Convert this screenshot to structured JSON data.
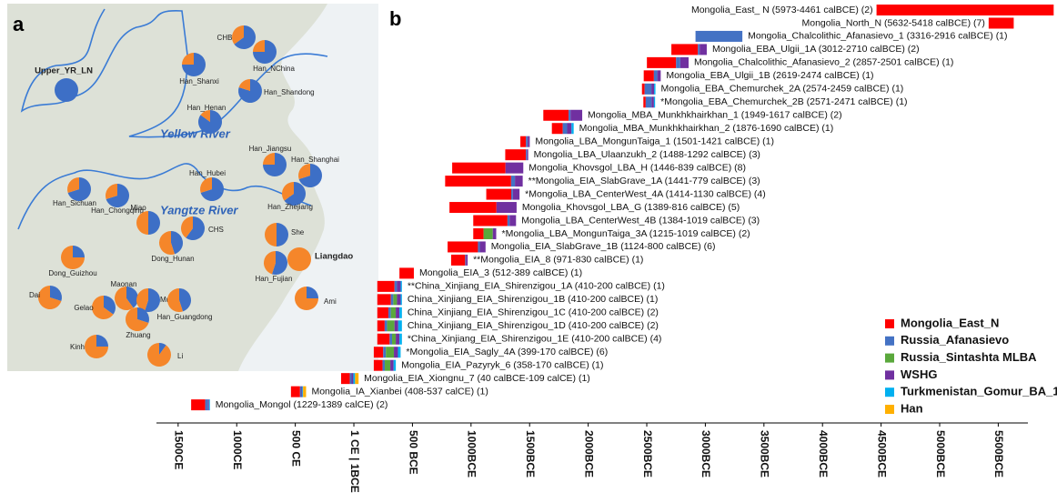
{
  "chart_data": [
    {
      "type": "pie",
      "title": "a",
      "annotations": [
        "Yellow River",
        "Yangtze River"
      ],
      "categories": [
        "Upper_YR_LN",
        "CHB",
        "Han_NChina",
        "Han_Shanxi",
        "Han_Shandong",
        "Han_Henan",
        "Han_Jiangsu",
        "Han_Shanghai",
        "Han_Hubei",
        "Han_Zhejiang",
        "Han_Sichuan",
        "Han_Chongqing",
        "Miao",
        "CHS",
        "Dong_Hunan",
        "She",
        "Liangdao",
        "Dong_Guizhou",
        "Han_Fujian",
        "Dai",
        "Maonan",
        "Mulam",
        "Gelao",
        "Zhuang",
        "Han_Guangdong",
        "Ami",
        "Kinh",
        "Li"
      ],
      "series": [
        {
          "color": "#3d6fc6",
          "values": [
            100,
            65,
            75,
            75,
            80,
            85,
            75,
            70,
            70,
            65,
            70,
            70,
            50,
            60,
            45,
            50,
            0,
            25,
            55,
            30,
            40,
            55,
            35,
            30,
            45,
            25,
            25,
            10
          ]
        },
        {
          "color": "#f5862a",
          "values": [
            0,
            35,
            25,
            25,
            20,
            15,
            25,
            30,
            30,
            35,
            30,
            30,
            50,
            40,
            55,
            50,
            100,
            75,
            45,
            70,
            60,
            45,
            65,
            70,
            55,
            75,
            75,
            90
          ]
        }
      ]
    },
    {
      "type": "bar",
      "title": "b",
      "orientation": "horizontal",
      "categories": [
        "Mongolia_East_ N (5973-4461 calBCE) (2)",
        "Mongolia_North_N (5632-5418 calBCE) (7)",
        "Mongolia_Chalcolithic_Afanasievo_1 (3316-2916 calBCE) (1)",
        "Mongolia_EBA_Ulgii_1A (3012-2710 calBCE) (2)",
        "Mongolia_Chalcolithic_Afanasievo_2 (2857-2501 calBCE) (1)",
        "Mongolia_EBA_Ulgii_1B (2619-2474 calBCE) (1)",
        "Mongolia_EBA_Chemurchek_2A (2574-2459 calBCE) (1)",
        "*Mongolia_EBA_Chemurchek_2B (2571-2471 calBCE) (1)",
        "Mongolia_MBA_Munkhkhairkhan_1 (1949-1617 calBCE) (2)",
        "Mongolia_MBA_Munkhkhairkhan_2 (1876-1690 calBCE) (1)",
        "Mongolia_LBA_MongunTaiga_1 (1501-1421 calBCE) (1)",
        "Mongolia_LBA_Ulaanzukh_2 (1488-1292 calBCE) (3)",
        "Mongolia_Khovsgol_LBA_H (1446-839 calBCE) (8)",
        "**Mongolia_EIA_SlabGrave_1A (1441-779 calBCE) (3)",
        "*Mongolia_LBA_CenterWest_4A (1414-1130 calBCE) (4)",
        "Mongolia_Khovsgol_LBA_G (1389-816 calBCE) (5)",
        "Mongolia_LBA_CenterWest_4B (1384-1019 calBCE) (3)",
        "*Mongolia_LBA_MongunTaiga_3A (1215-1019 calBCE) (2)",
        "Mongolia_EIA_SlabGrave_1B (1124-800 calBCE) (6)",
        "**Mongolia_EIA_8 (971-830 calBCE) (1)",
        "Mongolia_EIA_3 (512-389 calBCE) (1)",
        "**China_Xinjiang_EIA_Shirenzigou_1A (410-200 calBCE) (1)",
        "China_Xinjiang_EIA_Shirenzigou_1B (410-200 calBCE) (1)",
        "China_Xinjiang_EIA_Shirenzigou_1C (410-200 calBCE) (2)",
        "China_Xinjiang_EIA_Shirenzigou_1D (410-200 calBCE) (2)",
        "*China_Xinjiang_EIA_Shirenzigou_1E (410-200 calBCE) (4)",
        "*Mongolia_EIA_Sagly_4A (399-170 calBCE) (6)",
        "Mongolia_EIA_Pazyryk_6 (358-170 calBCE) (1)",
        "Mongolia_EIA_Xiongnu_7 (40 calBCE-109 calCE) (1)",
        "Mongolia_IA_Xianbei (408-537 calCE) (1)",
        "Mongolia_Mongol (1229-1389 calCE) (2)"
      ],
      "start": [
        5973,
        5632,
        3316,
        3012,
        2857,
        2619,
        2574,
        2571,
        1949,
        1876,
        1501,
        1488,
        1446,
        1441,
        1414,
        1389,
        1384,
        1215,
        1124,
        971,
        512,
        410,
        410,
        410,
        410,
        410,
        399,
        358,
        40,
        -408,
        -1229
      ],
      "end": [
        4461,
        5418,
        2916,
        2710,
        2501,
        2474,
        2459,
        2471,
        1617,
        1690,
        1421,
        1292,
        839,
        779,
        1130,
        816,
        1019,
        1019,
        800,
        830,
        389,
        200,
        200,
        200,
        200,
        200,
        170,
        170,
        -109,
        -537,
        -1389
      ],
      "series": [
        {
          "name": "Mongolia_East_N",
          "color": "#ff0000",
          "values": [
            100,
            100,
            0,
            75,
            70,
            60,
            20,
            20,
            65,
            50,
            60,
            90,
            75,
            85,
            75,
            70,
            80,
            45,
            80,
            85,
            100,
            70,
            55,
            45,
            30,
            50,
            35,
            40,
            50,
            60,
            75
          ]
        },
        {
          "name": "Russia_Afanasievo",
          "color": "#4472c4",
          "values": [
            0,
            0,
            100,
            5,
            10,
            20,
            50,
            50,
            5,
            20,
            20,
            5,
            0,
            5,
            5,
            0,
            5,
            0,
            5,
            5,
            0,
            10,
            10,
            10,
            10,
            10,
            10,
            10,
            10,
            10,
            15
          ]
        },
        {
          "name": "Russia_Sintashta MLBA",
          "color": "#5aa83c",
          "values": [
            0,
            0,
            0,
            0,
            0,
            0,
            0,
            0,
            0,
            0,
            0,
            0,
            0,
            0,
            0,
            0,
            0,
            40,
            0,
            0,
            0,
            0,
            15,
            20,
            30,
            15,
            30,
            25,
            0,
            0,
            0
          ]
        },
        {
          "name": "WSHG",
          "color": "#7030a0",
          "values": [
            0,
            0,
            0,
            20,
            20,
            20,
            20,
            20,
            30,
            20,
            20,
            5,
            25,
            10,
            20,
            30,
            15,
            15,
            15,
            10,
            0,
            15,
            15,
            15,
            15,
            15,
            15,
            15,
            10,
            5,
            5
          ]
        },
        {
          "name": "Turkmenistan_Gomur_BA_1",
          "color": "#00b0f0",
          "values": [
            0,
            0,
            0,
            0,
            0,
            0,
            10,
            10,
            0,
            10,
            0,
            0,
            0,
            0,
            0,
            0,
            0,
            0,
            0,
            0,
            0,
            5,
            5,
            10,
            15,
            10,
            10,
            10,
            10,
            5,
            5
          ]
        },
        {
          "name": "Han",
          "color": "#ffb000",
          "values": [
            0,
            0,
            0,
            0,
            0,
            0,
            0,
            0,
            0,
            0,
            0,
            0,
            0,
            0,
            0,
            0,
            0,
            0,
            0,
            0,
            0,
            0,
            0,
            0,
            0,
            0,
            0,
            0,
            20,
            20,
            0
          ]
        }
      ],
      "xlim": [
        -1685,
        5753
      ],
      "xticks": [
        {
          "value": -1500,
          "label": "1500CE"
        },
        {
          "value": -1000,
          "label": "1000CE"
        },
        {
          "value": -500,
          "label": "500 CE"
        },
        {
          "value": 0,
          "label": "1 CE | 1BCE"
        },
        {
          "value": 500,
          "label": "500 BCE"
        },
        {
          "value": 1000,
          "label": "1000BCE"
        },
        {
          "value": 1500,
          "label": "1500BCE"
        },
        {
          "value": 2000,
          "label": "2000BCE"
        },
        {
          "value": 2500,
          "label": "2500BCE"
        },
        {
          "value": 3000,
          "label": "3000BCE"
        },
        {
          "value": 3500,
          "label": "3500BCE"
        },
        {
          "value": 4000,
          "label": "4000BCE"
        },
        {
          "value": 4500,
          "label": "4500BCE"
        },
        {
          "value": 5000,
          "label": "5000BCE"
        },
        {
          "value": 5500,
          "label": "5500BCE"
        }
      ],
      "legend": "bottom-right"
    }
  ]
}
